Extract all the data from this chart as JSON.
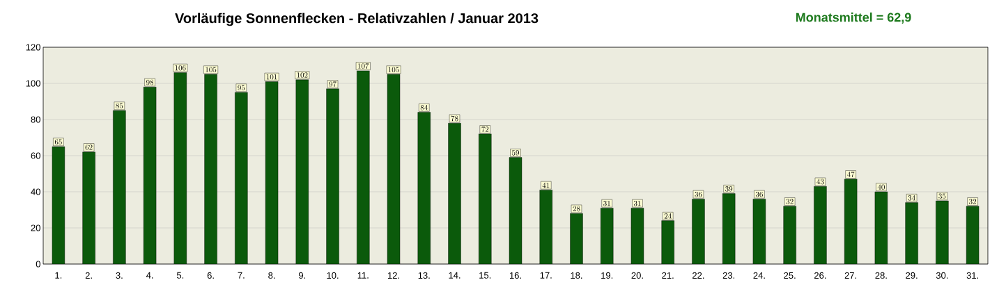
{
  "chart_data": {
    "type": "bar",
    "title": "Vorläufige Sonnenflecken - Relativzahlen  /   Januar 2013",
    "annotations": [
      "Monatsmittel = 62,9"
    ],
    "categories": [
      "1.",
      "2.",
      "3.",
      "4.",
      "5.",
      "6.",
      "7.",
      "8.",
      "9.",
      "10.",
      "11.",
      "12.",
      "13.",
      "14.",
      "15.",
      "16.",
      "17.",
      "18.",
      "19.",
      "20.",
      "21.",
      "22.",
      "23.",
      "24.",
      "25.",
      "26.",
      "27.",
      "28.",
      "29.",
      "30.",
      "31."
    ],
    "values": [
      65,
      62,
      85,
      98,
      106,
      105,
      95,
      101,
      102,
      97,
      107,
      105,
      84,
      78,
      72,
      59,
      41,
      28,
      31,
      31,
      24,
      36,
      39,
      36,
      32,
      43,
      47,
      40,
      34,
      35,
      32
    ],
    "color": "#0b5a0b",
    "ylim": [
      0,
      120
    ],
    "yticks": [
      0,
      20,
      40,
      60,
      80,
      100,
      120
    ],
    "grid": "y",
    "data_labels": true
  }
}
